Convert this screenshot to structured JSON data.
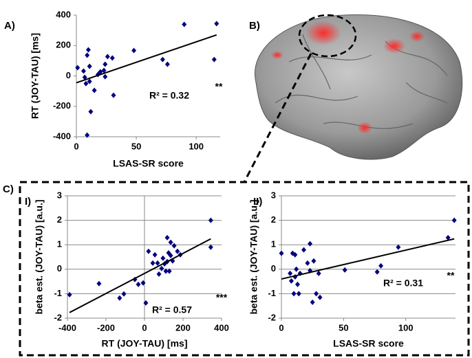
{
  "figure": {
    "labels": [
      "A)",
      "B)",
      "C)",
      "I)",
      "II)"
    ]
  },
  "chart_data": [
    {
      "type": "scatter",
      "x_label": "LSAS-SR score",
      "y_label": "RT (JOY-TAU) [ms]",
      "annotation": "R² = 0.32",
      "significance": "**",
      "color": "#000080",
      "grid": false,
      "xlim": [
        0,
        120
      ],
      "xticks": [
        0,
        50,
        100
      ],
      "ylim": [
        -400,
        400
      ],
      "yticks": [
        -400,
        -200,
        0,
        200,
        400
      ],
      "x": [
        1,
        6,
        7,
        8,
        9,
        10,
        11,
        11,
        9,
        12,
        15,
        18,
        20,
        23,
        24,
        24,
        26,
        30,
        31,
        48,
        72,
        76,
        90,
        115,
        117
      ],
      "values": [
        54,
        32,
        -9,
        -50,
        136,
        172,
        63,
        -36,
        -389,
        -235,
        -95,
        9,
        27,
        36,
        -5,
        77,
        127,
        118,
        -127,
        167,
        108,
        77,
        339,
        108,
        344
      ],
      "trendline": {
        "x": [
          0,
          117
        ],
        "y": [
          -45,
          270
        ]
      }
    },
    {
      "type": "scatter",
      "x_label": "RT (JOY-TAU) [ms]",
      "y_label": "beta est. (JOY-TAU) [a.u.]",
      "annotation": "R² = 0.57",
      "significance": "***",
      "color": "#000080",
      "grid": true,
      "zero_line_x": true,
      "xlim": [
        -400,
        400
      ],
      "xticks": [
        -400,
        -200,
        0,
        200,
        400
      ],
      "ylim": [
        -2,
        3
      ],
      "yticks": [
        -2,
        -1,
        0,
        1,
        2,
        3
      ],
      "x": [
        -389,
        -236,
        -129,
        -107,
        -50,
        -32,
        -7,
        7,
        21,
        43,
        54,
        68,
        75,
        89,
        96,
        104,
        111,
        118,
        125,
        129,
        136,
        146,
        118,
        136,
        154,
        171,
        186,
        344,
        344
      ],
      "values": [
        -1.04,
        -0.59,
        -1.18,
        -1.01,
        -0.42,
        -0.62,
        -0.56,
        -1.38,
        0.73,
        0.25,
        0.59,
        0.25,
        -0.2,
        0.03,
        0.45,
        0.22,
        -0.08,
        0.31,
        0.67,
        -0.08,
        0.56,
        0.34,
        1.29,
        1.1,
        0.96,
        0.73,
        0.59,
        2.0,
        0.9
      ],
      "trendline": {
        "x": [
          -389,
          344
        ],
        "y": [
          -1.77,
          1.24
        ]
      }
    },
    {
      "type": "scatter",
      "x_label": "LSAS-SR score",
      "y_label": "beta est. (JOY-TAU) [a.u.]",
      "annotation": "R² = 0.31",
      "significance": "**",
      "color": "#000080",
      "grid": true,
      "xlim": [
        0,
        140
      ],
      "xticks": [
        0,
        50,
        100
      ],
      "ylim": [
        -2,
        3
      ],
      "yticks": [
        -2,
        -1,
        0,
        1,
        2,
        3
      ],
      "x": [
        0,
        7,
        8,
        9,
        10,
        11,
        11,
        12,
        13,
        14,
        15,
        18,
        21,
        23,
        23,
        25,
        26,
        28,
        30,
        31,
        51,
        77,
        80,
        94,
        134,
        139
      ],
      "values": [
        0.65,
        -0.17,
        -0.48,
        0.65,
        -1.0,
        -0.31,
        0.59,
        0,
        -0.62,
        -1.0,
        -0.17,
        0.79,
        0.25,
        1.04,
        -0.06,
        -1.35,
        0.34,
        -1.0,
        -0.17,
        -1.15,
        -0.03,
        -0.11,
        0.14,
        0.9,
        1.29,
        2.0
      ],
      "trendline": {
        "x": [
          0,
          139
        ],
        "y": [
          -0.4,
          1.24
        ]
      }
    }
  ]
}
